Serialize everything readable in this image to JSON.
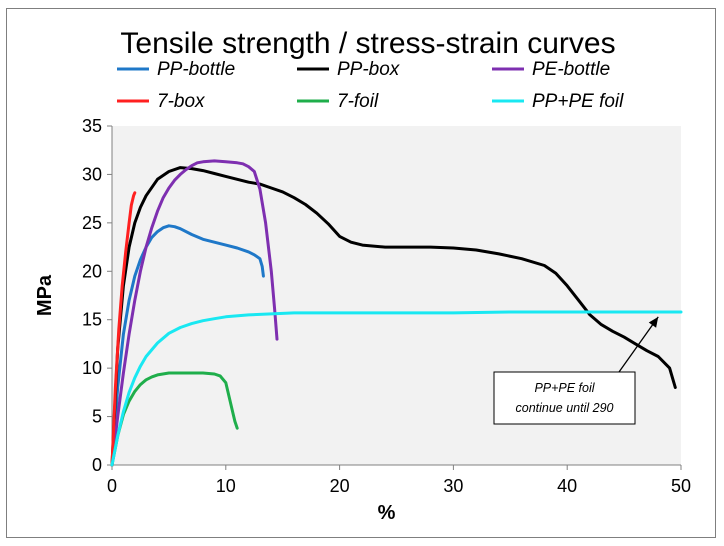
{
  "chart_data": {
    "type": "line",
    "title": "Tensile strength / stress-strain curves",
    "xlabel": "%",
    "ylabel": "MPa",
    "xlim": [
      0,
      50
    ],
    "ylim": [
      0,
      35
    ],
    "xticks": [
      0,
      10,
      20,
      30,
      40,
      50
    ],
    "yticks": [
      0,
      5,
      10,
      15,
      20,
      25,
      30,
      35
    ],
    "grid": false,
    "plot_background": "#f2f2f2",
    "legend_placement": "top",
    "series": [
      {
        "name": "PP-bottle",
        "color": "#1f78c8",
        "x": [
          0,
          0.5,
          1,
          1.5,
          2,
          2.5,
          3,
          3.5,
          4,
          4.5,
          5,
          5.5,
          6,
          7,
          8,
          9,
          10,
          11,
          12,
          12.5,
          13,
          13.2,
          13.3
        ],
        "y": [
          0,
          8,
          13.5,
          17,
          19.5,
          21.2,
          22.5,
          23.5,
          24.1,
          24.5,
          24.7,
          24.6,
          24.4,
          23.8,
          23.3,
          23,
          22.7,
          22.4,
          22,
          21.7,
          21.3,
          20.5,
          19.5
        ]
      },
      {
        "name": "PP-box",
        "color": "#000000",
        "x": [
          0,
          0.5,
          1,
          1.5,
          2,
          2.5,
          3,
          4,
          5,
          6,
          7,
          8,
          9,
          10,
          11,
          12,
          13,
          14,
          15,
          16,
          17,
          18,
          19,
          20,
          21,
          22,
          24,
          26,
          28,
          30,
          32,
          34,
          36,
          38,
          39,
          40,
          41,
          42,
          43,
          44,
          45,
          46,
          47,
          48,
          49,
          49.5
        ],
        "y": [
          0,
          12,
          18.5,
          22.5,
          25,
          26.6,
          27.8,
          29.5,
          30.3,
          30.7,
          30.6,
          30.4,
          30.1,
          29.8,
          29.5,
          29.2,
          29,
          28.6,
          28.2,
          27.6,
          26.9,
          26,
          24.9,
          23.6,
          23,
          22.7,
          22.5,
          22.5,
          22.5,
          22.4,
          22.2,
          21.8,
          21.3,
          20.6,
          19.8,
          18.5,
          17,
          15.5,
          14.5,
          13.8,
          13.2,
          12.5,
          11.8,
          11.2,
          10,
          8
        ]
      },
      {
        "name": "PE-bottle",
        "color": "#7e2fb0",
        "x": [
          0,
          0.5,
          1,
          1.5,
          2,
          2.5,
          3,
          3.5,
          4,
          4.5,
          5,
          5.5,
          6,
          6.5,
          7,
          7.5,
          8,
          9,
          10,
          11,
          11.5,
          12,
          12.5,
          13,
          13.5,
          14,
          14.3,
          14.5
        ],
        "y": [
          0,
          5,
          9.5,
          13.5,
          17,
          20,
          22.5,
          24.5,
          26.2,
          27.6,
          28.6,
          29.4,
          30,
          30.5,
          30.9,
          31.2,
          31.3,
          31.4,
          31.3,
          31.2,
          31.1,
          30.8,
          30.3,
          28.5,
          25,
          20,
          16,
          13
        ]
      },
      {
        "name": "7-box",
        "color": "#ff2020",
        "x": [
          0,
          0.3,
          0.6,
          0.9,
          1.2,
          1.5,
          1.7,
          1.9,
          2
        ],
        "y": [
          0,
          8,
          14,
          18.5,
          22,
          25,
          26.8,
          27.8,
          28.1
        ]
      },
      {
        "name": "7-foil",
        "color": "#1fae4b",
        "x": [
          0,
          0.5,
          1,
          1.5,
          2,
          2.5,
          3,
          3.5,
          4,
          5,
          6,
          7,
          8,
          9,
          9.5,
          10,
          10.3,
          10.6,
          10.8,
          11
        ],
        "y": [
          0,
          3,
          5.2,
          6.6,
          7.6,
          8.3,
          8.8,
          9.1,
          9.3,
          9.5,
          9.5,
          9.5,
          9.5,
          9.4,
          9.2,
          8.5,
          7,
          5.5,
          4.5,
          3.8
        ]
      },
      {
        "name": "PP+PE foil",
        "color": "#19e8f2",
        "x": [
          0,
          0.5,
          1,
          1.5,
          2,
          2.5,
          3,
          4,
          5,
          6,
          7,
          8,
          9,
          10,
          12,
          14,
          16,
          18,
          20,
          25,
          30,
          35,
          40,
          45,
          50
        ],
        "y": [
          0,
          3,
          5.5,
          7.5,
          9,
          10.2,
          11.2,
          12.6,
          13.6,
          14.2,
          14.6,
          14.9,
          15.1,
          15.3,
          15.5,
          15.6,
          15.7,
          15.7,
          15.7,
          15.7,
          15.7,
          15.8,
          15.8,
          15.8,
          15.8
        ]
      }
    ],
    "annotation": {
      "lines": [
        "PP+PE foil",
        "continue until 290"
      ],
      "arrow_to": {
        "x": 48,
        "y": 15.7
      }
    }
  }
}
